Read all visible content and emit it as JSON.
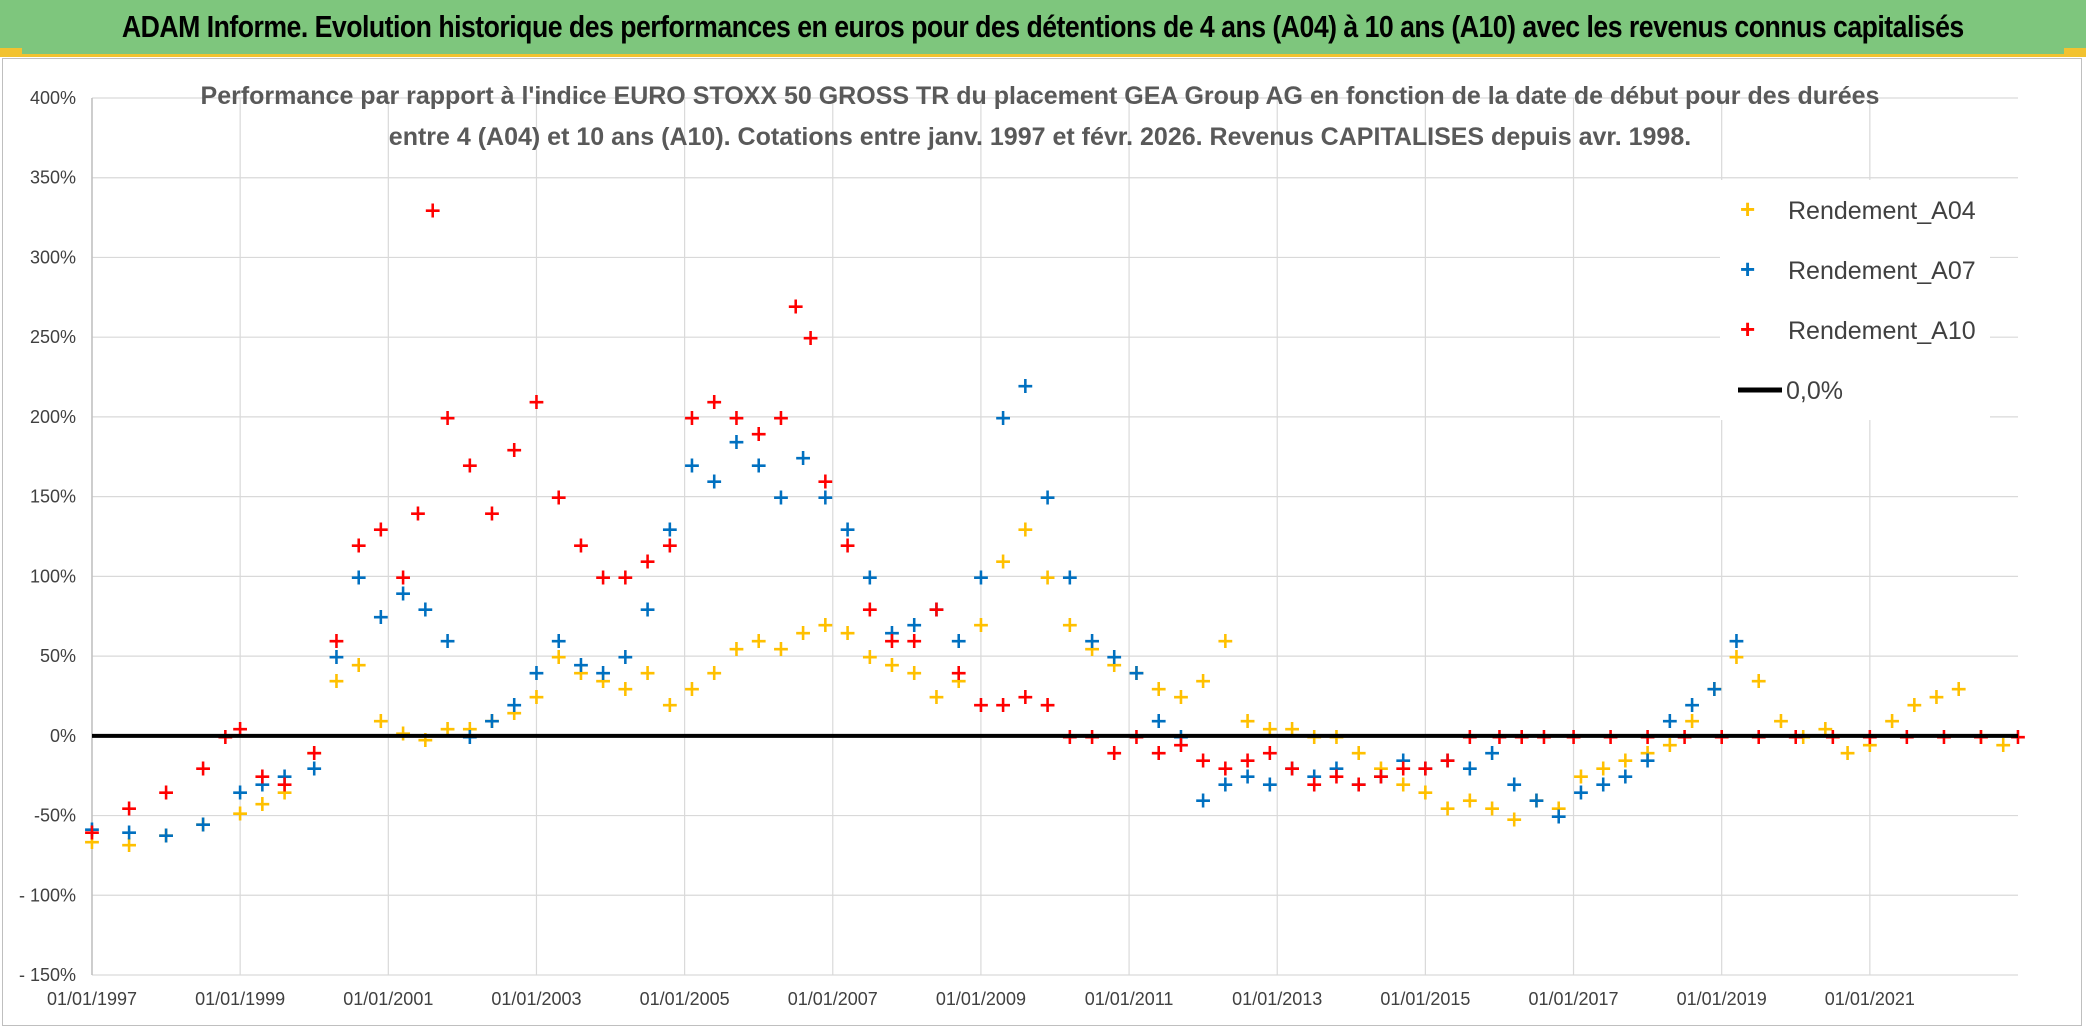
{
  "banner": {
    "title": "ADAM Informe. Evolution historique des performances en euros pour des détentions de 4 ans (A04) à 10 ans (A10) avec les revenus connus capitalisés"
  },
  "colors": {
    "banner_bg": "#7ec67d",
    "accent": "#f2c230",
    "a04": "#ffc000",
    "a07": "#0070c0",
    "a10": "#ff0000",
    "zero": "#000000",
    "grid": "#d9d9d9"
  },
  "chart_data": {
    "type": "scatter",
    "title_lines": [
      "Performance par rapport à l'indice EURO STOXX 50 GROSS TR  du placement GEA Group AG en fonction de la date de début pour des durées",
      "entre 4 (A04) et 10 ans (A10). Cotations entre janv. 1997 et févr. 2026. Revenus CAPITALISES depuis avr. 1998."
    ],
    "xlabel": "",
    "ylabel": "",
    "x_range": [
      1997.0,
      2023.0
    ],
    "ylim": [
      -150,
      400
    ],
    "y_ticks": [
      400,
      350,
      300,
      250,
      200,
      150,
      100,
      50,
      0,
      -50,
      -100,
      -150
    ],
    "y_tick_labels": [
      "400%",
      "350%",
      "300%",
      "250%",
      "200%",
      "150%",
      "100%",
      "50%",
      "0%",
      "-50%",
      "- 100%",
      "- 150%"
    ],
    "x_ticks": [
      1997,
      1999,
      2001,
      2003,
      2005,
      2007,
      2009,
      2011,
      2013,
      2015,
      2017,
      2019,
      2021
    ],
    "x_tick_labels": [
      "01/01/1997",
      "01/01/1999",
      "01/01/2001",
      "01/01/2003",
      "01/01/2005",
      "01/01/2007",
      "01/01/2009",
      "01/01/2011",
      "01/01/2013",
      "01/01/2015",
      "01/01/2017",
      "01/01/2019",
      "01/01/2021"
    ],
    "legend": {
      "placement": "top-right",
      "entries": [
        "Rendement_A04",
        "Rendement_A07",
        "Rendement_A10",
        "0,0%"
      ]
    },
    "series": [
      {
        "name": "Rendement_A04",
        "x": [
          1997.0,
          1997.5,
          1998.0,
          1998.5,
          1999.0,
          1999.3,
          1999.6,
          2000.0,
          2000.3,
          2000.6,
          2000.9,
          2001.2,
          2001.5,
          2001.8,
          2002.1,
          2002.4,
          2002.7,
          2003.0,
          2003.3,
          2003.6,
          2003.9,
          2004.2,
          2004.5,
          2004.8,
          2005.1,
          2005.4,
          2005.7,
          2006.0,
          2006.3,
          2006.6,
          2006.9,
          2007.2,
          2007.5,
          2007.8,
          2008.1,
          2008.4,
          2008.7,
          2009.0,
          2009.3,
          2009.6,
          2009.9,
          2010.2,
          2010.5,
          2010.8,
          2011.1,
          2011.4,
          2011.7,
          2012.0,
          2012.3,
          2012.6,
          2012.9,
          2013.2,
          2013.5,
          2013.8,
          2014.1,
          2014.4,
          2014.7,
          2015.0,
          2015.3,
          2015.6,
          2015.9,
          2016.2,
          2016.5,
          2016.8,
          2017.1,
          2017.4,
          2017.7,
          2018.0,
          2018.3,
          2018.6,
          2018.9,
          2019.2,
          2019.5,
          2019.8,
          2020.1,
          2020.4,
          2020.7,
          2021.0,
          2021.3,
          2021.6,
          2021.9,
          2022.2,
          2022.5,
          2022.8
        ],
        "values": [
          -66,
          -68,
          -62,
          -55,
          -48,
          -42,
          -35,
          -10,
          35,
          45,
          10,
          2,
          -2,
          5,
          5,
          10,
          15,
          25,
          50,
          40,
          35,
          30,
          40,
          20,
          30,
          40,
          55,
          60,
          55,
          65,
          70,
          65,
          50,
          45,
          40,
          25,
          35,
          70,
          110,
          130,
          100,
          70,
          55,
          45,
          40,
          30,
          25,
          35,
          60,
          10,
          5,
          5,
          0,
          0,
          -10,
          -20,
          -30,
          -35,
          -45,
          -40,
          -45,
          -52,
          -40,
          -45,
          -25,
          -20,
          -15,
          -10,
          -5,
          10,
          30,
          50,
          35,
          10,
          0,
          5,
          -10,
          -5,
          10,
          20,
          25,
          30,
          0,
          -5
        ]
      },
      {
        "name": "Rendement_A07",
        "x": [
          1997.0,
          1997.5,
          1998.0,
          1998.5,
          1999.0,
          1999.3,
          1999.6,
          2000.0,
          2000.3,
          2000.6,
          2000.9,
          2001.2,
          2001.5,
          2001.8,
          2002.1,
          2002.4,
          2002.7,
          2003.0,
          2003.3,
          2003.6,
          2003.9,
          2004.2,
          2004.5,
          2004.8,
          2005.1,
          2005.4,
          2005.7,
          2006.0,
          2006.3,
          2006.6,
          2006.9,
          2007.2,
          2007.5,
          2007.8,
          2008.1,
          2008.4,
          2008.7,
          2009.0,
          2009.3,
          2009.6,
          2009.9,
          2010.2,
          2010.5,
          2010.8,
          2011.1,
          2011.4,
          2011.7,
          2012.0,
          2012.3,
          2012.6,
          2012.9,
          2013.2,
          2013.5,
          2013.8,
          2014.1,
          2014.4,
          2014.7,
          2015.0,
          2015.3,
          2015.6,
          2015.9,
          2016.2,
          2016.5,
          2016.8,
          2017.1,
          2017.4,
          2017.7,
          2018.0,
          2018.3,
          2018.6,
          2018.9,
          2019.2
        ],
        "values": [
          -58,
          -60,
          -62,
          -55,
          -35,
          -30,
          -25,
          -20,
          50,
          100,
          75,
          90,
          80,
          60,
          0,
          10,
          20,
          40,
          60,
          45,
          40,
          50,
          80,
          130,
          170,
          160,
          185,
          170,
          150,
          175,
          150,
          130,
          100,
          65,
          70,
          80,
          60,
          100,
          200,
          220,
          150,
          100,
          60,
          50,
          40,
          10,
          0,
          -40,
          -30,
          -25,
          -30,
          -20,
          -25,
          -20,
          -30,
          -25,
          -15,
          -20,
          -15,
          -20,
          -10,
          -30,
          -40,
          -50,
          -35,
          -30,
          -25,
          -15,
          10,
          20,
          30,
          60
        ]
      },
      {
        "name": "Rendement_A10",
        "x": [
          1997.0,
          1997.5,
          1998.0,
          1998.5,
          1998.8,
          1999.0,
          1999.3,
          1999.6,
          2000.0,
          2000.3,
          2000.6,
          2000.9,
          2001.2,
          2001.4,
          2001.6,
          2001.8,
          2002.1,
          2002.4,
          2002.7,
          2003.0,
          2003.3,
          2003.6,
          2003.9,
          2004.2,
          2004.5,
          2004.8,
          2005.1,
          2005.4,
          2005.7,
          2006.0,
          2006.3,
          2006.5,
          2006.7,
          2006.9,
          2007.2,
          2007.5,
          2007.8,
          2008.1,
          2008.4,
          2008.7,
          2009.0,
          2009.3,
          2009.6,
          2009.9,
          2010.2,
          2010.5,
          2010.8,
          2011.1,
          2011.4,
          2011.7,
          2012.0,
          2012.3,
          2012.6,
          2012.9,
          2013.2,
          2013.5,
          2013.8,
          2014.1,
          2014.4,
          2014.7,
          2015.0,
          2015.3,
          2015.6,
          2016.0,
          2016.3,
          2016.6,
          2017.0,
          2017.5,
          2018.0,
          2018.5,
          2019.0,
          2019.5,
          2020.0,
          2020.5,
          2021.0,
          2021.5,
          2022.0,
          2022.5,
          2023.0
        ],
        "values": [
          -60,
          -45,
          -35,
          -20,
          0,
          5,
          -25,
          -30,
          -10,
          60,
          120,
          130,
          100,
          140,
          330,
          200,
          170,
          140,
          180,
          210,
          150,
          120,
          100,
          100,
          110,
          120,
          200,
          210,
          200,
          190,
          200,
          270,
          250,
          160,
          120,
          80,
          60,
          60,
          80,
          40,
          20,
          20,
          25,
          20,
          0,
          0,
          -10,
          0,
          -10,
          -5,
          -15,
          -20,
          -15,
          -10,
          -20,
          -30,
          -25,
          -30,
          -25,
          -20,
          -20,
          -15,
          0,
          0,
          0,
          0,
          0,
          0,
          0,
          0,
          0,
          0,
          0,
          0,
          0,
          0,
          0,
          0,
          0
        ]
      }
    ],
    "zero_line": {
      "label": "0,0%",
      "value": 0
    }
  }
}
